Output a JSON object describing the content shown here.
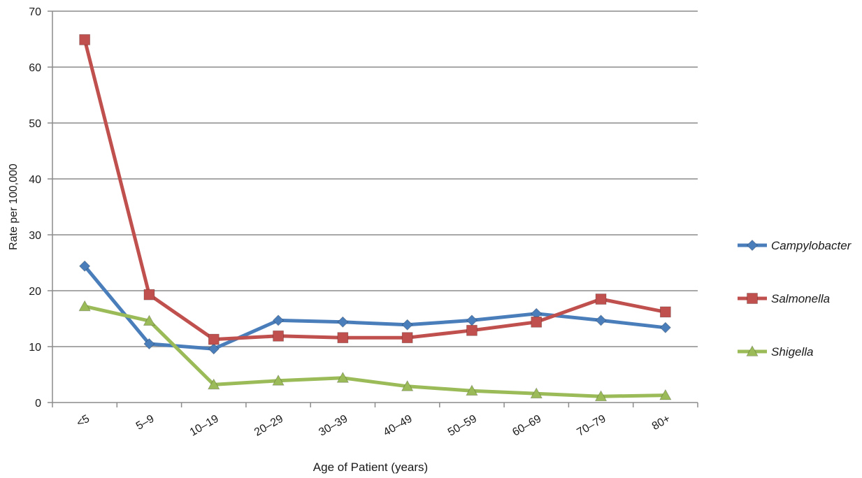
{
  "chart_data": {
    "type": "line",
    "xlabel": "Age of Patient (years)",
    "ylabel": "Rate per 100,000",
    "ylim": [
      0,
      70
    ],
    "yticks": [
      0,
      10,
      20,
      30,
      40,
      50,
      60,
      70
    ],
    "grid": true,
    "legend_position": "right",
    "categories": [
      "<5",
      "5–9",
      "10–19",
      "20–29",
      "30–39",
      "40–49",
      "50–59",
      "60–69",
      "70–79",
      "80+"
    ],
    "series": [
      {
        "name": "Campylobacter",
        "color": "#4a7ebb",
        "marker": "diamond",
        "values": [
          24.4,
          10.5,
          9.6,
          14.7,
          14.4,
          13.9,
          14.7,
          15.9,
          14.7,
          13.4
        ]
      },
      {
        "name": "Salmonella",
        "color": "#c0504d",
        "marker": "square",
        "values": [
          64.9,
          19.3,
          11.3,
          11.9,
          11.6,
          11.6,
          12.9,
          14.4,
          18.5,
          16.2
        ]
      },
      {
        "name": "Shigella",
        "color": "#9bbb59",
        "marker": "triangle",
        "values": [
          17.2,
          14.6,
          3.2,
          3.9,
          4.4,
          2.9,
          2.1,
          1.6,
          1.1,
          1.3
        ]
      }
    ]
  }
}
